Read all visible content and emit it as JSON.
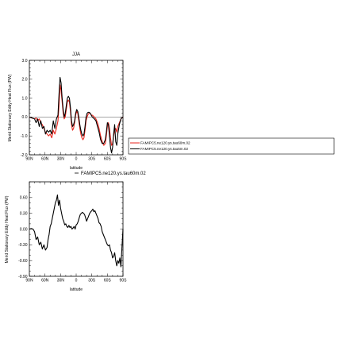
{
  "chart_data": [
    {
      "type": "line",
      "title": "JJA",
      "xlabel": "latitude",
      "ylabel": "Merid Stationary Eddy Heat Flux (PW)",
      "xlim": [
        90,
        -90
      ],
      "ylim": [
        -2.0,
        3.0
      ],
      "xtick_values": [
        90,
        60,
        30,
        0,
        -30,
        -60,
        -90
      ],
      "xtick_labels": [
        "90N",
        "60N",
        "30N",
        "0",
        "30S",
        "60S",
        "90S"
      ],
      "ytick_values": [
        -2.0,
        -1.0,
        0.0,
        1.0,
        2.0,
        3.0
      ],
      "ytick_labels": [
        "-2.0",
        "-1.0",
        "0.0",
        "1.0",
        "2.0",
        "3.0"
      ],
      "legend_position": "right",
      "series": [
        {
          "name": "FAMIPC5.ne120.ys.tau60m.02",
          "color": "#e8261e",
          "x": [
            90,
            85,
            80,
            77,
            74,
            71,
            68,
            65,
            62,
            59,
            56,
            53,
            50,
            47,
            44,
            41,
            38,
            35,
            33,
            31,
            29,
            27,
            25,
            23,
            21,
            19,
            17,
            15,
            13,
            11,
            9,
            7,
            5,
            3,
            1,
            -1,
            -3,
            -5,
            -7,
            -9,
            -11,
            -13,
            -15,
            -17,
            -19,
            -21,
            -23,
            -25,
            -27,
            -29,
            -31,
            -33,
            -35,
            -38,
            -41,
            -44,
            -47,
            -50,
            -53,
            -56,
            -58,
            -60,
            -62,
            -64,
            -66,
            -68,
            -70,
            -72,
            -74,
            -76,
            -78,
            -80,
            -83,
            -86,
            -90
          ],
          "y": [
            0.0,
            -0.05,
            -0.1,
            -0.05,
            -0.2,
            -0.1,
            -0.3,
            -0.4,
            -0.6,
            -0.8,
            -0.9,
            -1.0,
            -0.9,
            -1.1,
            -0.7,
            -0.9,
            -0.6,
            -0.2,
            0.6,
            1.7,
            1.4,
            0.8,
            0.2,
            -0.1,
            0.0,
            0.4,
            0.8,
            0.9,
            0.8,
            0.3,
            -0.4,
            -0.7,
            -0.6,
            -0.3,
            0.1,
            0.3,
            0.2,
            -0.2,
            -0.6,
            -0.9,
            -1.1,
            -1.2,
            -1.1,
            -0.7,
            -0.2,
            0.0,
            0.15,
            0.2,
            0.2,
            0.1,
            0.1,
            0.05,
            0.0,
            -0.1,
            -0.3,
            -0.6,
            -1.0,
            -1.3,
            -1.5,
            -1.4,
            -1.0,
            -0.5,
            -0.3,
            -0.6,
            -1.1,
            -1.5,
            -1.4,
            -1.0,
            -0.7,
            -0.6,
            -0.8,
            -0.5,
            -0.3,
            -0.1,
            0.0
          ]
        },
        {
          "name": "FAMIPC5.ne120.ys.tau5m.02",
          "color": "#000000",
          "x": [
            90,
            85,
            80,
            77,
            74,
            71,
            68,
            65,
            62,
            59,
            56,
            53,
            50,
            47,
            44,
            41,
            38,
            35,
            33,
            31,
            29,
            27,
            25,
            23,
            21,
            19,
            17,
            15,
            13,
            11,
            9,
            7,
            5,
            3,
            1,
            -1,
            -3,
            -5,
            -7,
            -9,
            -11,
            -13,
            -15,
            -17,
            -19,
            -21,
            -23,
            -25,
            -27,
            -29,
            -31,
            -33,
            -35,
            -38,
            -41,
            -44,
            -47,
            -50,
            -53,
            -56,
            -58,
            -60,
            -62,
            -64,
            -66,
            -68,
            -70,
            -72,
            -74,
            -76,
            -78,
            -80,
            -83,
            -86,
            -90
          ],
          "y": [
            0.0,
            -0.05,
            -0.1,
            -0.3,
            -0.1,
            -0.5,
            -0.2,
            -0.6,
            -0.5,
            -0.9,
            -0.7,
            -0.8,
            -0.7,
            -0.9,
            -0.2,
            -0.6,
            -0.1,
            0.1,
            1.2,
            2.1,
            1.8,
            1.0,
            0.4,
            0.0,
            0.2,
            0.6,
            1.0,
            1.1,
            1.0,
            0.5,
            -0.2,
            -0.5,
            -0.4,
            -0.2,
            0.2,
            0.4,
            0.3,
            0.0,
            -0.4,
            -0.7,
            -0.9,
            -1.0,
            -0.9,
            -0.5,
            0.0,
            0.2,
            0.25,
            0.25,
            0.2,
            0.1,
            0.0,
            -0.05,
            -0.1,
            -0.2,
            -0.5,
            -0.8,
            -1.2,
            -1.4,
            -1.4,
            -1.2,
            -0.8,
            -0.3,
            -0.4,
            -1.0,
            -1.6,
            -1.9,
            -1.6,
            -0.9,
            -0.4,
            -1.3,
            -1.5,
            -0.9,
            -0.4,
            -0.1,
            0.0
          ]
        }
      ]
    },
    {
      "type": "line",
      "title": "",
      "xlabel": "latitude",
      "ylabel": "Merid Stationary Eddy Heat Flux (PW)",
      "xlim": [
        90,
        -90
      ],
      "ylim": [
        -0.9,
        0.9
      ],
      "xtick_values": [
        90,
        60,
        30,
        0,
        -30,
        -60,
        -90
      ],
      "xtick_labels": [
        "90N",
        "60N",
        "30N",
        "0",
        "30S",
        "60S",
        "90S"
      ],
      "ytick_values": [
        -0.9,
        -0.6,
        -0.3,
        0.0,
        0.3,
        0.6
      ],
      "ytick_labels": [
        "-0.90",
        "-0.60",
        "-0.30",
        "0.00",
        "0.30",
        "0.60"
      ],
      "legend_position": "top",
      "series": [
        {
          "name": "FAMIPC5.ne120.ys.tau60m.02",
          "color": "#000000",
          "x": [
            90,
            86,
            83,
            80,
            77,
            74,
            71,
            68,
            65,
            62,
            59,
            56,
            54,
            52,
            50,
            48,
            46,
            44,
            42,
            40,
            38,
            36,
            34,
            32,
            30,
            28,
            26,
            24,
            22,
            20,
            18,
            16,
            14,
            12,
            10,
            8,
            6,
            4,
            2,
            0,
            -2,
            -4,
            -6,
            -8,
            -10,
            -12,
            -14,
            -16,
            -18,
            -20,
            -22,
            -24,
            -26,
            -28,
            -30,
            -32,
            -34,
            -36,
            -38,
            -40,
            -42,
            -44,
            -46,
            -48,
            -50,
            -52,
            -54,
            -56,
            -58,
            -60,
            -62,
            -64,
            -66,
            -68,
            -70,
            -72,
            -74,
            -76,
            -78,
            -80,
            -82,
            -84,
            -86,
            -88,
            -90
          ],
          "y": [
            0.0,
            0.01,
            0.0,
            -0.05,
            -0.2,
            -0.15,
            -0.3,
            -0.25,
            -0.38,
            -0.3,
            -0.4,
            -0.35,
            -0.2,
            -0.1,
            0.05,
            0.1,
            0.2,
            0.3,
            0.4,
            0.5,
            0.55,
            0.65,
            0.45,
            0.55,
            0.4,
            0.3,
            0.2,
            0.15,
            0.08,
            0.1,
            0.05,
            0.03,
            0.07,
            0.03,
            0.05,
            0.0,
            0.02,
            0.05,
            0.0,
            0.08,
            0.1,
            0.15,
            0.22,
            0.28,
            0.3,
            0.32,
            0.3,
            0.28,
            0.22,
            0.15,
            0.2,
            0.25,
            0.3,
            0.33,
            0.35,
            0.38,
            0.33,
            0.35,
            0.3,
            0.25,
            0.2,
            0.12,
            0.1,
            0.05,
            -0.05,
            -0.1,
            -0.15,
            -0.2,
            -0.25,
            -0.3,
            -0.32,
            -0.3,
            -0.4,
            -0.45,
            -0.55,
            -0.52,
            -0.45,
            -0.6,
            -0.7,
            -0.6,
            -0.65,
            -0.55,
            -0.72,
            -0.35,
            0.0
          ]
        }
      ]
    }
  ],
  "legends": {
    "top_chart": [
      {
        "label": "FAMIPC5.ne120.ys.tau60m.02",
        "color": "#e8261e"
      },
      {
        "label": "FAMIPC5.ne120.ys.tau5m.02",
        "color": "#000000"
      }
    ],
    "bottom_chart_label": "FAMIPC5.ne120.ys.tau60m.02"
  }
}
